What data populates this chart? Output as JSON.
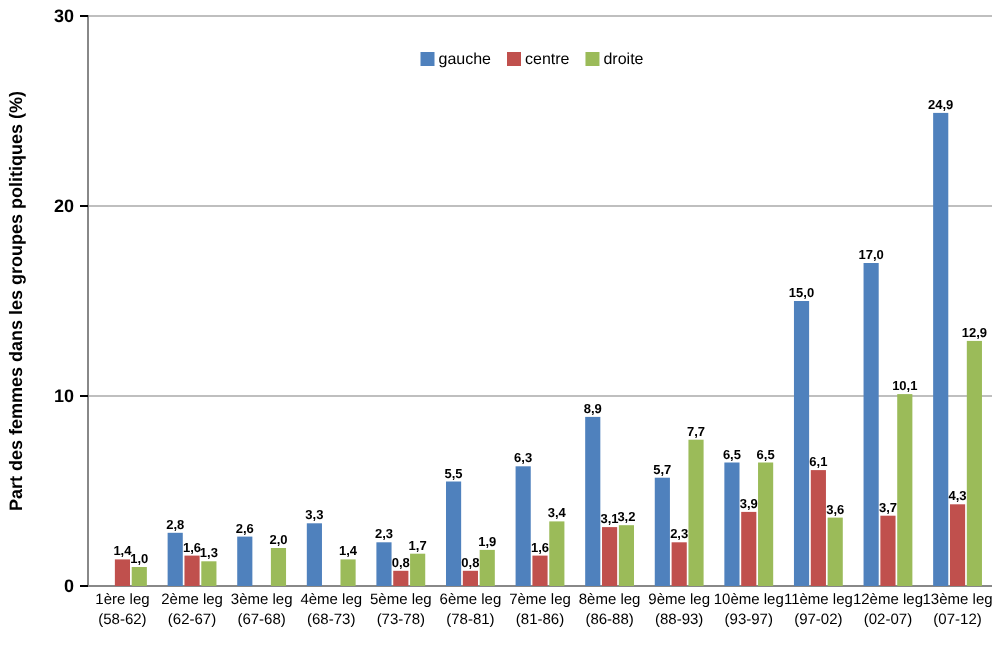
{
  "chart_data": {
    "type": "bar",
    "ylabel": "Part  des femmes dans les groupes politiques (%)",
    "categories": [
      "1ère leg\n(58-62)",
      "2ème leg\n(62-67)",
      "3ème leg\n(67-68)",
      "4ème leg\n(68-73)",
      "5ème leg\n(73-78)",
      "6ème leg\n(78-81)",
      "7ème leg\n(81-86)",
      "8ème leg\n(86-88)",
      "9ème leg\n(88-93)",
      "10ème leg\n(93-97)",
      "11ème leg\n(97-02)",
      "12ème leg\n(02-07)",
      "13ème leg\n(07-12)"
    ],
    "series": [
      {
        "name": "gauche",
        "color": "#4f81bd",
        "values": [
          null,
          2.8,
          2.6,
          3.3,
          2.3,
          5.5,
          6.3,
          8.9,
          5.7,
          6.5,
          15.0,
          17.0,
          24.9
        ],
        "value_labels": [
          null,
          "2,8",
          "2,6",
          "3,3",
          "2,3",
          "5,5",
          "6,3",
          "8,9",
          "5,7",
          "6,5",
          "15,0",
          "17,0",
          "24,9"
        ]
      },
      {
        "name": "centre",
        "color": "#c0504d",
        "values": [
          1.4,
          1.6,
          null,
          null,
          0.8,
          0.8,
          1.6,
          3.1,
          2.3,
          3.9,
          6.1,
          3.7,
          4.3
        ],
        "value_labels": [
          "1,4",
          "1,6",
          null,
          null,
          "0,8",
          "0,8",
          "1,6",
          "3,1",
          "2,3",
          "3,9",
          "6,1",
          "3,7",
          "4,3"
        ]
      },
      {
        "name": "droite",
        "color": "#9bbb59",
        "values": [
          1.0,
          1.3,
          2.0,
          1.4,
          1.7,
          1.9,
          3.4,
          3.2,
          7.7,
          6.5,
          3.6,
          10.1,
          12.9
        ],
        "value_labels": [
          "1,0",
          "1,3",
          "2,0",
          "1,4",
          "1,7",
          "1,9",
          "3,4",
          "3,2",
          "7,7",
          "6,5",
          "3,6",
          "10,1",
          "12,9"
        ]
      }
    ],
    "ylim": [
      0,
      30
    ],
    "yticks": [
      0,
      10,
      20,
      30
    ],
    "grid": "y",
    "legend": "top"
  }
}
